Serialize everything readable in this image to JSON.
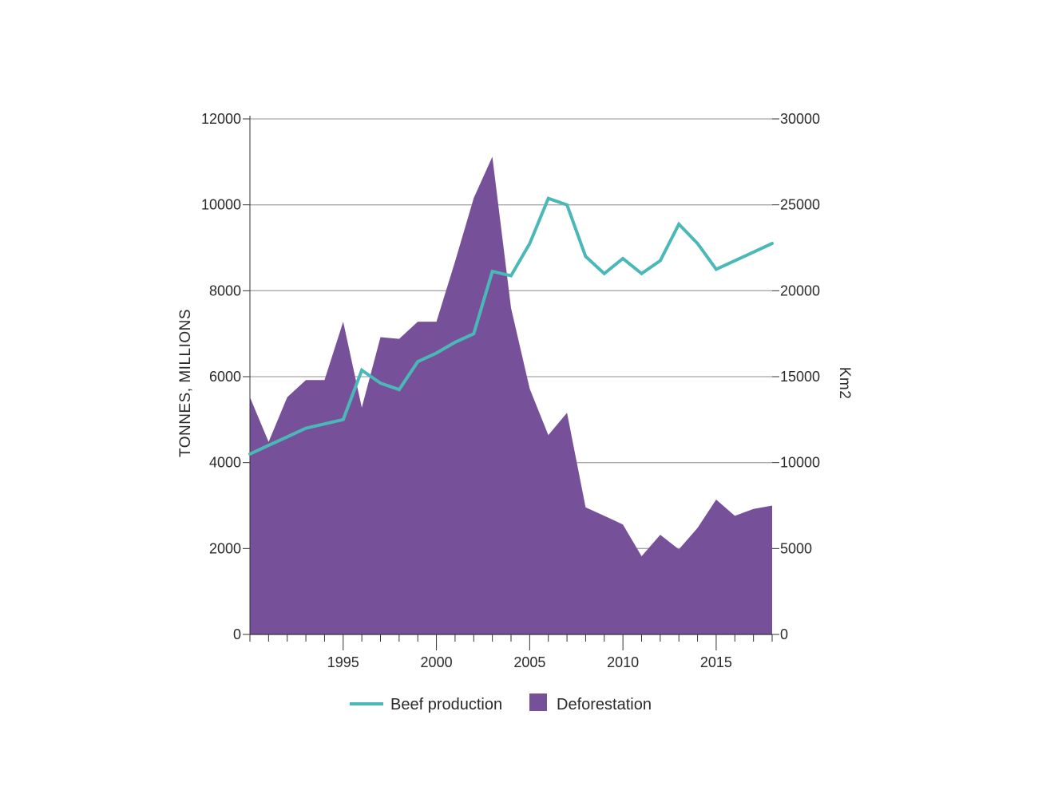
{
  "chart_data": {
    "type": "area+line (dual axis)",
    "years": [
      1990,
      1991,
      1992,
      1993,
      1994,
      1995,
      1996,
      1997,
      1998,
      1999,
      2000,
      2001,
      2002,
      2003,
      2004,
      2005,
      2006,
      2007,
      2008,
      2009,
      2010,
      2011,
      2012,
      2013,
      2014,
      2015,
      2016,
      2017,
      2018
    ],
    "series": [
      {
        "name": "Beef production",
        "type": "line",
        "axis": "left",
        "color": "#4bb8b8",
        "values": [
          4200,
          4400,
          4600,
          4800,
          4900,
          5000,
          6150,
          5850,
          5700,
          6350,
          6550,
          6800,
          7000,
          8450,
          8350,
          9100,
          10150,
          10000,
          8800,
          8400,
          8750,
          8400,
          8700,
          9550,
          9100,
          8500,
          8700,
          8900,
          9100
        ]
      },
      {
        "name": "Deforestation",
        "type": "area",
        "axis": "right",
        "color": "#76519a",
        "values": [
          13800,
          11200,
          13800,
          14800,
          14800,
          18200,
          13200,
          17300,
          17200,
          18200,
          18200,
          21700,
          25400,
          27800,
          19000,
          14300,
          11600,
          12900,
          7400,
          6900,
          6400,
          4550,
          5800,
          4950,
          6200,
          7850,
          6900,
          7300,
          7500
        ]
      }
    ],
    "y_left": {
      "label": "TONNES, MILLIONS",
      "range": [
        0,
        12000
      ],
      "ticks": [
        "0",
        "2000",
        "4000",
        "6000",
        "8000",
        "10000",
        "12000"
      ]
    },
    "y_right": {
      "label": "Km2",
      "range": [
        0,
        30000
      ],
      "ticks": [
        "0",
        "5000",
        "10000",
        "15000",
        "20000",
        "25000",
        "30000"
      ]
    },
    "x_axis": {
      "range": [
        1990,
        2018
      ],
      "ticks": [
        "1995",
        "2000",
        "2005",
        "2010",
        "2015"
      ]
    },
    "legend": {
      "position": "bottom-center",
      "items": [
        "Beef production",
        "Deforestation"
      ]
    },
    "grid": true
  }
}
